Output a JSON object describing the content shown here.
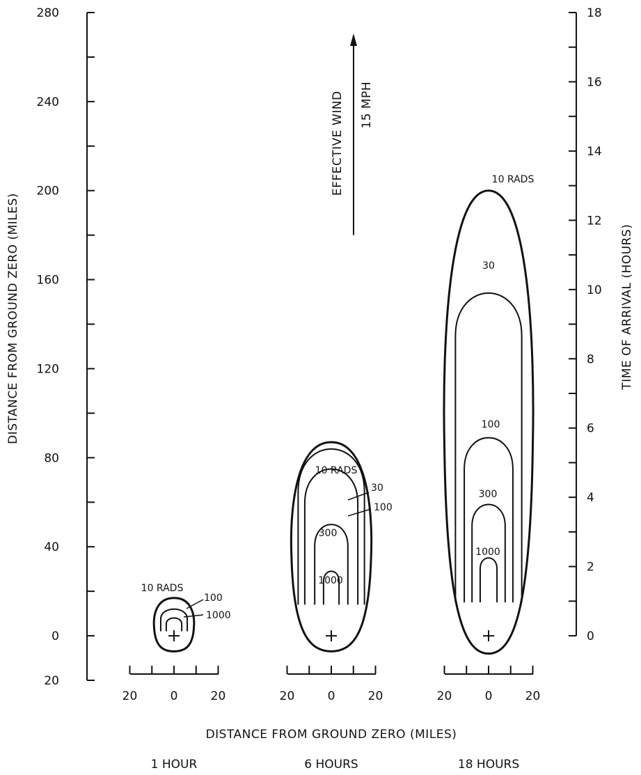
{
  "chart_data": {
    "type": "contour",
    "x_title": "DISTANCE FROM GROUND ZERO (MILES)",
    "left_axis": {
      "title": "DISTANCE FROM GROUND ZERO (MILES)",
      "range": [
        -20,
        280
      ],
      "tick_labels": [
        {
          "value": -20,
          "label": "20"
        },
        {
          "value": 0,
          "label": "0"
        },
        {
          "value": 40,
          "label": "40"
        },
        {
          "value": 80,
          "label": "80"
        },
        {
          "value": 120,
          "label": "120"
        },
        {
          "value": 160,
          "label": "160"
        },
        {
          "value": 200,
          "label": "200"
        },
        {
          "value": 240,
          "label": "240"
        },
        {
          "value": 280,
          "label": "280"
        }
      ],
      "minor_step": 20
    },
    "right_axis": {
      "title": "TIME OF ARRIVAL (HOURS)",
      "range": [
        0,
        18
      ],
      "tick_labels": [
        "0",
        "2",
        "4",
        "6",
        "8",
        "10",
        "12",
        "14",
        "16",
        "18"
      ],
      "tick_values": [
        0,
        2,
        4,
        6,
        8,
        10,
        12,
        14,
        16,
        18
      ],
      "minor_step": 1
    },
    "wind": {
      "label": "EFFECTIVE WIND",
      "speed_label": "15 MPH",
      "direction": "up",
      "from_y": 180,
      "to_y": 270
    },
    "panels": [
      {
        "label": "1 HOUR",
        "x_range": [
          -20,
          20
        ],
        "x_ticks": [
          -20,
          -10,
          0,
          10,
          20
        ],
        "x_tick_labels": [
          {
            "value": -20,
            "label": "20"
          },
          {
            "value": 0,
            "label": "0"
          },
          {
            "value": 20,
            "label": "20"
          }
        ],
        "contours": [
          {
            "rads": 10,
            "label": "10 RADS",
            "closed": true,
            "top": 17,
            "bottom": -7,
            "half_width": 9
          },
          {
            "rads": 100,
            "label": "100",
            "closed": false,
            "top": 12,
            "bottom": 2,
            "half_width": 6
          },
          {
            "rads": 1000,
            "label": "1000",
            "closed": false,
            "top": 8,
            "bottom": 2,
            "half_width": 3.5
          }
        ]
      },
      {
        "label": "6 HOURS",
        "x_range": [
          -20,
          20
        ],
        "x_ticks": [
          -20,
          -10,
          0,
          10,
          20
        ],
        "x_tick_labels": [
          {
            "value": -20,
            "label": "20"
          },
          {
            "value": 0,
            "label": "0"
          },
          {
            "value": 20,
            "label": "20"
          }
        ],
        "contours": [
          {
            "rads": 10,
            "label": "10 RADS",
            "closed": true,
            "top": 87,
            "bottom": -7,
            "half_width": 18
          },
          {
            "rads": 30,
            "label": "30",
            "closed": false,
            "top": 84,
            "bottom": 14,
            "half_width": 15
          },
          {
            "rads": 100,
            "label": "100",
            "closed": false,
            "top": 75,
            "bottom": 14,
            "half_width": 12
          },
          {
            "rads": 300,
            "label": "300",
            "closed": false,
            "top": 50,
            "bottom": 14,
            "half_width": 7.5
          },
          {
            "rads": 1000,
            "label": "1000",
            "closed": false,
            "top": 29,
            "bottom": 14,
            "half_width": 3.5
          }
        ]
      },
      {
        "label": "18 HOURS",
        "x_range": [
          -20,
          20
        ],
        "x_ticks": [
          -20,
          -10,
          0,
          10,
          20
        ],
        "x_tick_labels": [
          {
            "value": -20,
            "label": "20"
          },
          {
            "value": 0,
            "label": "0"
          },
          {
            "value": 20,
            "label": "20"
          }
        ],
        "contours": [
          {
            "rads": 10,
            "label": "10 RADS",
            "closed": true,
            "top": 200,
            "bottom": -8,
            "half_width": 20
          },
          {
            "rads": 30,
            "label": "30",
            "closed": false,
            "top": 154,
            "bottom": 15,
            "half_width": 15
          },
          {
            "rads": 100,
            "label": "100",
            "closed": false,
            "top": 89,
            "bottom": 15,
            "half_width": 11
          },
          {
            "rads": 300,
            "label": "300",
            "closed": false,
            "top": 59,
            "bottom": 15,
            "half_width": 7.5
          },
          {
            "rads": 1000,
            "label": "1000",
            "closed": false,
            "top": 35,
            "bottom": 15,
            "half_width": 3.8
          }
        ]
      }
    ]
  }
}
